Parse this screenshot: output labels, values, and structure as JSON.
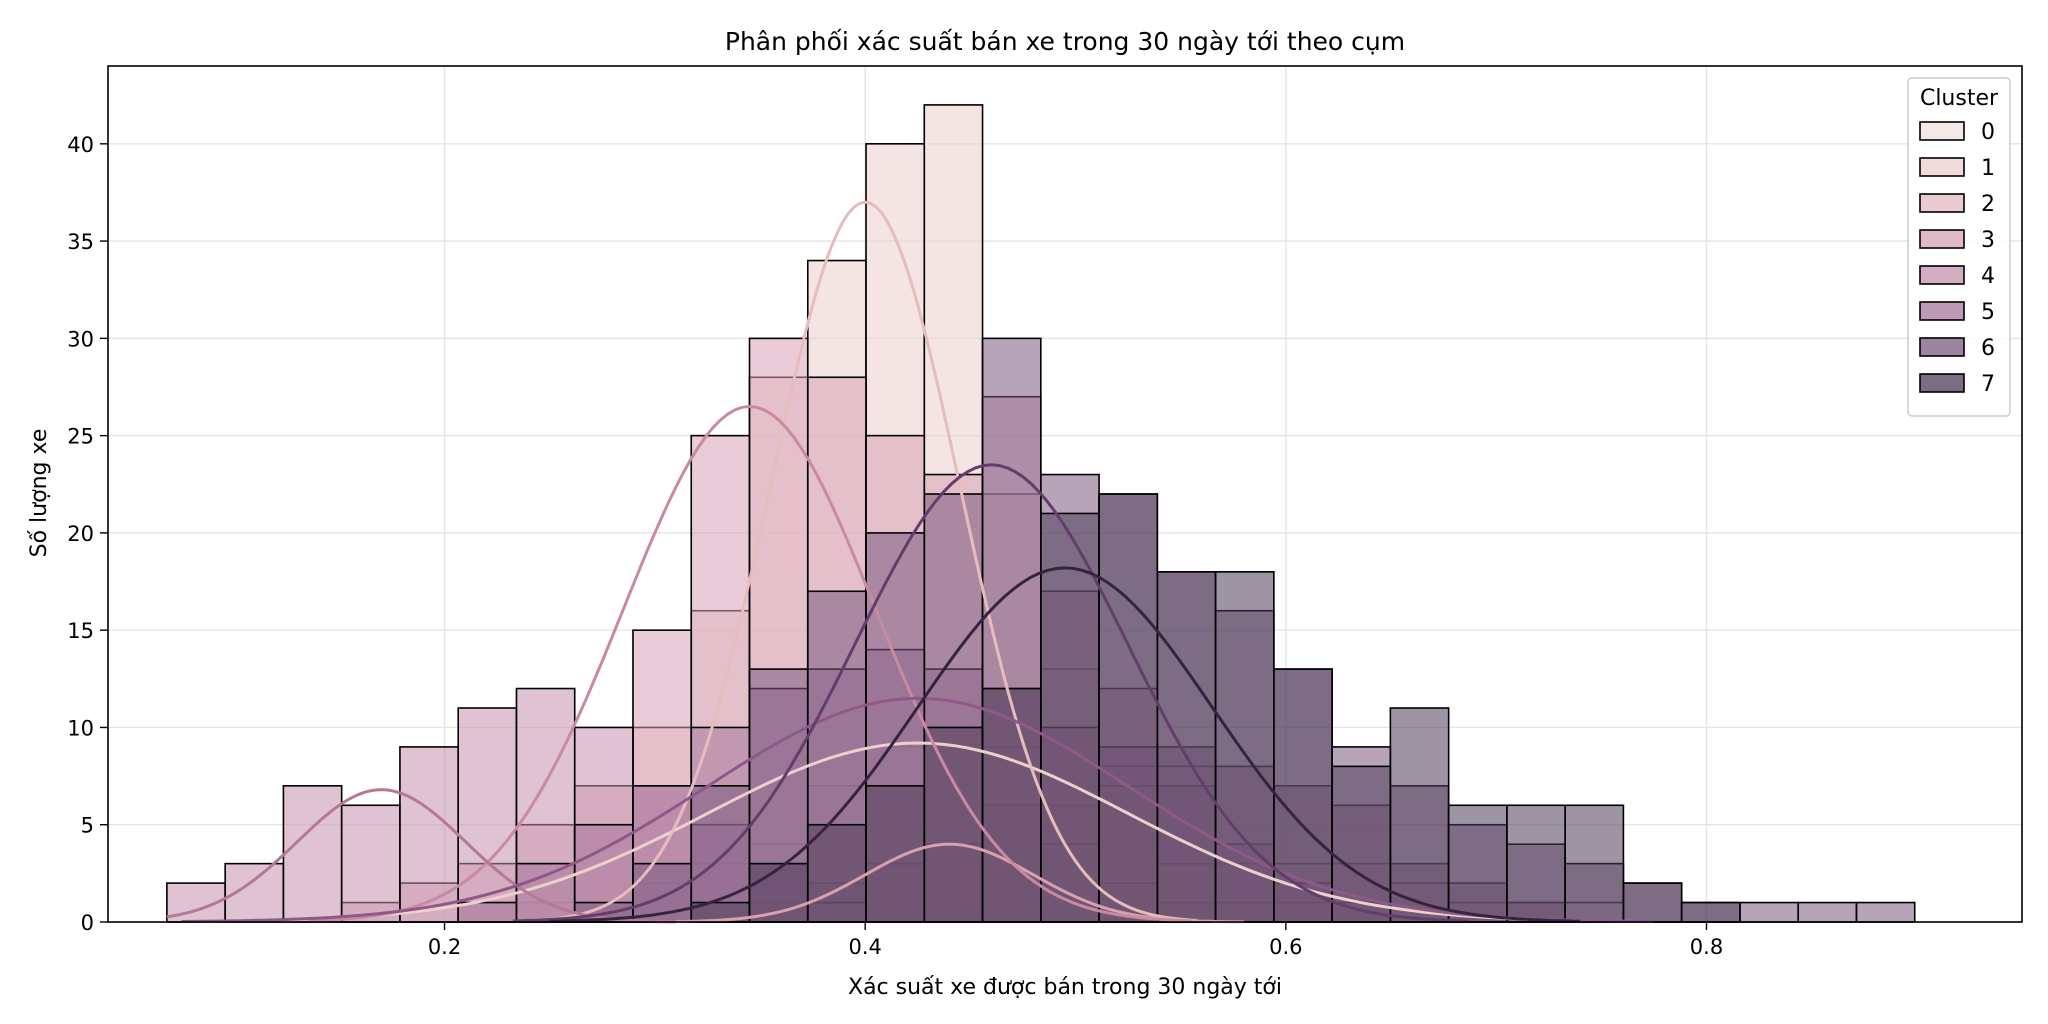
{
  "chart_data": {
    "type": "histogram",
    "title": "Phân phối xác suất bán xe trong 30 ngày tới theo cụm",
    "xlabel": "Xác suất xe được bán trong 30 ngày tới",
    "ylabel": "Số lượng xe",
    "xlim": [
      0.04,
      0.95
    ],
    "ylim": [
      0,
      44
    ],
    "x_ticks": [
      0.2,
      0.4,
      0.6,
      0.8
    ],
    "y_ticks": [
      0,
      5,
      10,
      15,
      20,
      25,
      30,
      35,
      40
    ],
    "grid": true,
    "legend": {
      "title": "Cluster",
      "position": "top-right"
    },
    "kde": true,
    "bin_edges": [
      0.068,
      0.0957,
      0.1234,
      0.1511,
      0.1788,
      0.2065,
      0.2342,
      0.2619,
      0.2896,
      0.3173,
      0.345,
      0.3727,
      0.4004,
      0.4281,
      0.4558,
      0.4835,
      0.5112,
      0.5389,
      0.5666,
      0.5943,
      0.622,
      0.6497,
      0.6774,
      0.7051,
      0.7328,
      0.7605,
      0.7882,
      0.8159,
      0.8436,
      0.8713,
      0.899
    ],
    "series": [
      {
        "name": "0",
        "color": "#f2e2e0",
        "curve": "#ecd0cb",
        "counts": [
          0,
          0,
          0,
          0,
          0,
          1,
          1,
          1,
          2,
          3,
          4,
          7,
          9,
          10,
          9,
          6,
          8,
          8,
          3,
          3,
          3,
          2,
          1,
          1,
          1,
          0,
          0,
          0,
          0,
          0
        ],
        "kde_peak": {
          "mu": 0.425,
          "sd": 0.1,
          "peak": 9.2
        }
      },
      {
        "name": "1",
        "color": "#ebcfce",
        "curve": "#e6bcbc",
        "counts": [
          0,
          0,
          0,
          0,
          0,
          1,
          3,
          5,
          10,
          16,
          28,
          34,
          40,
          42,
          22,
          13,
          7,
          3,
          1,
          1,
          0,
          0,
          0,
          0,
          0,
          0,
          0,
          0,
          0,
          0
        ],
        "kde_peak": {
          "mu": 0.4,
          "sd": 0.045,
          "peak": 37
        }
      },
      {
        "name": "2",
        "color": "#e3b9bf",
        "curve": "#d9a0ad",
        "counts": [
          0,
          0,
          0,
          0,
          0,
          0,
          0,
          0,
          0,
          0,
          1,
          2,
          3,
          4,
          6,
          4,
          2,
          1,
          0,
          0,
          0,
          0,
          0,
          0,
          0,
          0,
          0,
          0,
          0,
          0
        ],
        "kde_peak": {
          "mu": 0.44,
          "sd": 0.04,
          "peak": 4
        }
      },
      {
        "name": "3",
        "color": "#d7a2b6",
        "curve": "#c98aa1",
        "counts": [
          0,
          0,
          0,
          1,
          2,
          3,
          5,
          7,
          15,
          25,
          30,
          28,
          25,
          23,
          27,
          17,
          12,
          7,
          4,
          2,
          1,
          0,
          0,
          0,
          0,
          0,
          0,
          0,
          0,
          0
        ],
        "kde_peak": {
          "mu": 0.345,
          "sd": 0.06,
          "peak": 26.5
        }
      },
      {
        "name": "4",
        "color": "#c591ad",
        "curve": "#b47994",
        "counts": [
          2,
          3,
          7,
          6,
          9,
          11,
          12,
          10,
          7,
          5,
          3,
          1,
          0,
          0,
          0,
          0,
          0,
          0,
          0,
          0,
          0,
          0,
          0,
          0,
          0,
          0,
          0,
          0,
          0,
          0
        ],
        "kde_peak": {
          "mu": 0.17,
          "sd": 0.04,
          "peak": 6.8
        }
      },
      {
        "name": "5",
        "color": "#a8789f",
        "curve": "#8e5988",
        "counts": [
          0,
          0,
          0,
          0,
          0,
          1,
          3,
          5,
          7,
          10,
          12,
          13,
          14,
          13,
          12,
          10,
          9,
          9,
          8,
          7,
          6,
          3,
          2,
          1,
          0,
          0,
          0,
          0,
          0,
          0
        ],
        "kde_peak": {
          "mu": 0.425,
          "sd": 0.1,
          "peak": 11.5
        }
      },
      {
        "name": "6",
        "color": "#7b5a7f",
        "curve": "#633e6b",
        "counts": [
          0,
          0,
          0,
          0,
          0,
          0,
          0,
          1,
          3,
          7,
          13,
          17,
          20,
          22,
          30,
          23,
          22,
          18,
          16,
          13,
          9,
          7,
          5,
          4,
          3,
          2,
          1,
          1,
          1,
          1
        ],
        "kde_peak": {
          "mu": 0.46,
          "sd": 0.065,
          "peak": 23.5
        }
      },
      {
        "name": "7",
        "color": "#4f3e5a",
        "curve": "#35243f",
        "counts": [
          0,
          0,
          0,
          0,
          0,
          0,
          0,
          0,
          0,
          1,
          3,
          5,
          7,
          10,
          12,
          21,
          22,
          18,
          18,
          13,
          8,
          11,
          6,
          6,
          6,
          2,
          1,
          0,
          0,
          0
        ],
        "kde_peak": {
          "mu": 0.495,
          "sd": 0.07,
          "peak": 18.2
        }
      }
    ]
  }
}
